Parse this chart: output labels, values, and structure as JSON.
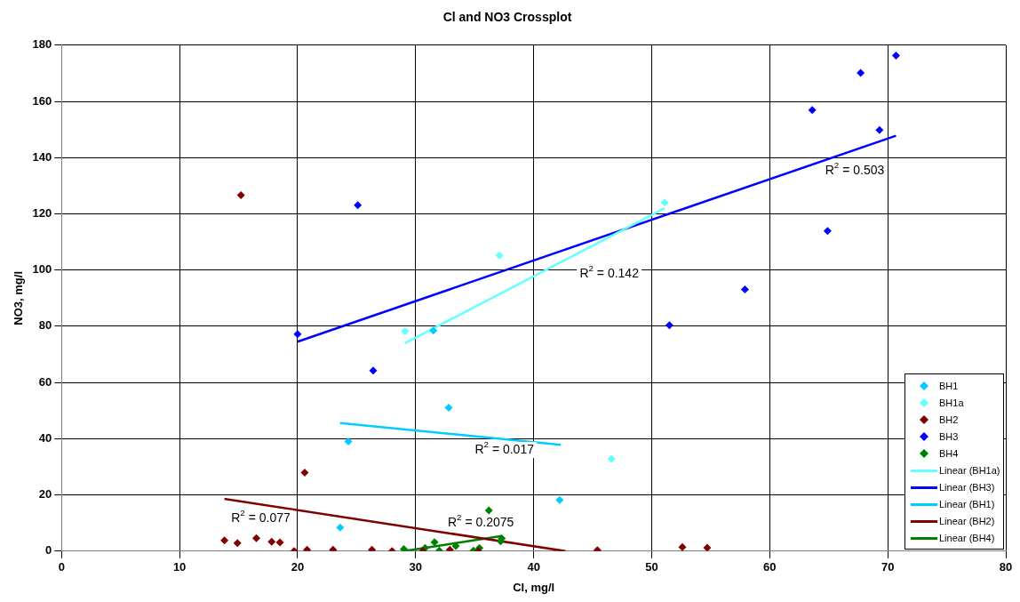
{
  "chart_data": {
    "type": "scatter",
    "title": "Cl and NO3 Crossplot",
    "xlabel": "Cl, mg/l",
    "ylabel": "NO3, mg/l",
    "xlim": [
      0,
      80
    ],
    "xticks": [
      0,
      10,
      20,
      30,
      40,
      50,
      60,
      70,
      80
    ],
    "ylim": [
      0,
      180
    ],
    "yticks": [
      0,
      20,
      40,
      60,
      80,
      100,
      120,
      140,
      160,
      180
    ],
    "grid": true,
    "legend": "bottom right",
    "series": [
      {
        "name": "BH1",
        "color": "#00ccff",
        "marker": "diamond",
        "x": [
          23.6,
          24.3,
          32.8,
          31.5,
          42.2
        ],
        "values": [
          8.4,
          39,
          51,
          78.5,
          18.2
        ]
      },
      {
        "name": "BH1a",
        "color": "#66ffff",
        "marker": "diamond",
        "x": [
          29.1,
          37.1,
          51.1,
          46.6
        ],
        "values": [
          78.2,
          105.2,
          124,
          32.8
        ]
      },
      {
        "name": "BH2",
        "color": "#800000",
        "marker": "diamond",
        "x": [
          15.2,
          20.6,
          13.8,
          14.9,
          16.5,
          17.8,
          18.5,
          19.7,
          20.8,
          23.0,
          26.3,
          28.0,
          30.6,
          32.9,
          35.3,
          45.4,
          52.6,
          54.7
        ],
        "values": [
          126.6,
          27.9,
          3.8,
          2.9,
          4.6,
          3.3,
          3.1,
          0,
          0.5,
          0.5,
          0.5,
          0,
          0,
          0.5,
          0,
          0.3,
          1.4,
          1.2
        ]
      },
      {
        "name": "BH3",
        "color": "#0000ff",
        "marker": "diamond",
        "x": [
          20,
          25.1,
          26.4,
          51.5,
          57.9,
          63.6,
          67.7,
          70.7,
          69.3,
          64.9
        ],
        "values": [
          77.2,
          123.1,
          64.2,
          80.4,
          93.1,
          156.9,
          170.1,
          176.3,
          149.8,
          113.9
        ]
      },
      {
        "name": "BH4",
        "color": "#008000",
        "marker": "diamond",
        "x": [
          29.0,
          30.8,
          31.6,
          32.0,
          33.4,
          34.9,
          35.4,
          36.2,
          37.3,
          37.2
        ],
        "values": [
          0.7,
          1.1,
          3.2,
          0.2,
          1.8,
          0.2,
          1.1,
          14.5,
          4.5,
          3.5
        ]
      },
      {
        "name": "Linear (BH1a)",
        "color": "#66ffff",
        "type": "line",
        "x": [
          29.1,
          51.1
        ],
        "values": [
          74,
          122
        ]
      },
      {
        "name": "Linear (BH3)",
        "color": "#0000ff",
        "type": "line",
        "x": [
          20,
          70.7
        ],
        "values": [
          74.5,
          147.8
        ]
      },
      {
        "name": "Linear (BH1)",
        "color": "#00ccff",
        "type": "line",
        "x": [
          23.6,
          42.3
        ],
        "values": [
          45.6,
          37.8
        ]
      },
      {
        "name": "Linear (BH2)",
        "color": "#800000",
        "type": "line",
        "x": [
          13.8,
          42.7
        ],
        "values": [
          18.6,
          0
        ]
      },
      {
        "name": "Linear (BH4)",
        "color": "#008000",
        "type": "line",
        "x": [
          29.0,
          37.3
        ],
        "values": [
          0,
          5.4
        ]
      }
    ],
    "annotations": [
      "R$^{2}$ = 0.503",
      "R$^{2}$ = 0.142",
      "R$^{2}$ = 0.017",
      "R$^{2}$ = 0.077",
      "R$^{2}$ = 0.2075"
    ]
  }
}
